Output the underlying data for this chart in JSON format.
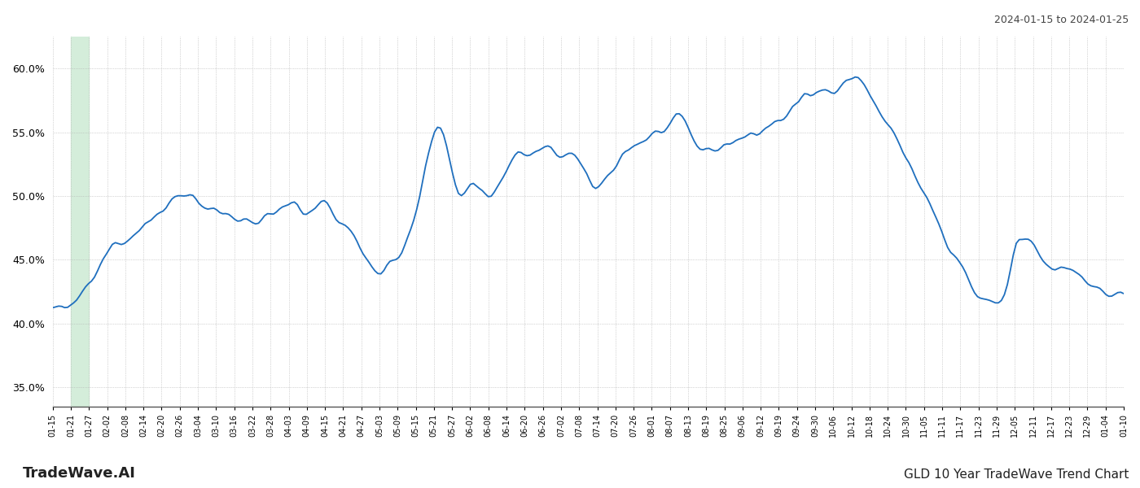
{
  "title_top_right": "2024-01-15 to 2024-01-25",
  "title_bottom_left": "TradeWave.AI",
  "title_bottom_right": "GLD 10 Year TradeWave Trend Chart",
  "line_color": "#1f6fbe",
  "highlight_color": "#d4edda",
  "background_color": "#ffffff",
  "grid_color": "#b0b0b0",
  "y_min": 0.335,
  "y_max": 0.625,
  "y_ticks": [
    0.35,
    0.4,
    0.45,
    0.5,
    0.55,
    0.6
  ],
  "x_labels": [
    "01-15",
    "01-21",
    "01-27",
    "02-02",
    "02-08",
    "02-14",
    "02-20",
    "02-26",
    "03-04",
    "03-10",
    "03-16",
    "03-22",
    "03-28",
    "04-03",
    "04-09",
    "04-15",
    "04-21",
    "04-27",
    "05-03",
    "05-09",
    "05-15",
    "05-21",
    "05-27",
    "06-02",
    "06-08",
    "06-14",
    "06-20",
    "06-26",
    "07-02",
    "07-08",
    "07-14",
    "07-20",
    "07-26",
    "08-01",
    "08-07",
    "08-13",
    "08-19",
    "08-25",
    "09-06",
    "09-12",
    "09-19",
    "09-24",
    "09-30",
    "10-06",
    "10-12",
    "10-18",
    "10-24",
    "10-30",
    "11-05",
    "11-11",
    "11-17",
    "11-23",
    "11-29",
    "12-05",
    "12-11",
    "12-17",
    "12-23",
    "12-29",
    "01-04",
    "01-10"
  ],
  "highlight_label_start": "01-21",
  "highlight_label_end": "01-27",
  "n_points": 360,
  "waypoints_x": [
    0,
    3,
    7,
    10,
    15,
    20,
    24,
    28,
    32,
    36,
    40,
    44,
    48,
    52,
    56,
    60,
    64,
    68,
    72,
    76,
    80,
    84,
    88,
    92,
    96,
    100,
    106,
    112,
    118,
    124,
    130,
    136,
    140,
    145,
    150,
    155,
    160,
    165,
    170,
    175,
    180,
    185,
    190,
    195,
    200,
    205,
    208,
    211,
    215,
    220,
    225,
    230,
    235,
    240,
    245,
    250,
    255,
    260,
    265,
    270,
    275,
    280,
    285,
    290,
    295,
    300,
    305,
    310,
    315,
    320,
    323,
    326,
    329,
    332,
    335,
    338,
    342,
    346,
    350,
    353,
    356,
    359
  ],
  "waypoints_y": [
    0.411,
    0.411,
    0.414,
    0.426,
    0.445,
    0.462,
    0.465,
    0.472,
    0.479,
    0.49,
    0.497,
    0.503,
    0.498,
    0.49,
    0.487,
    0.484,
    0.481,
    0.477,
    0.484,
    0.49,
    0.496,
    0.487,
    0.49,
    0.495,
    0.48,
    0.475,
    0.445,
    0.444,
    0.46,
    0.51,
    0.556,
    0.502,
    0.509,
    0.502,
    0.51,
    0.531,
    0.532,
    0.536,
    0.533,
    0.53,
    0.51,
    0.512,
    0.53,
    0.54,
    0.546,
    0.552,
    0.556,
    0.558,
    0.543,
    0.536,
    0.54,
    0.545,
    0.548,
    0.555,
    0.562,
    0.573,
    0.58,
    0.584,
    0.59,
    0.592,
    0.575,
    0.555,
    0.535,
    0.512,
    0.488,
    0.46,
    0.443,
    0.42,
    0.415,
    0.43,
    0.462,
    0.465,
    0.46,
    0.45,
    0.443,
    0.445,
    0.442,
    0.437,
    0.427,
    0.422,
    0.424,
    0.425
  ]
}
